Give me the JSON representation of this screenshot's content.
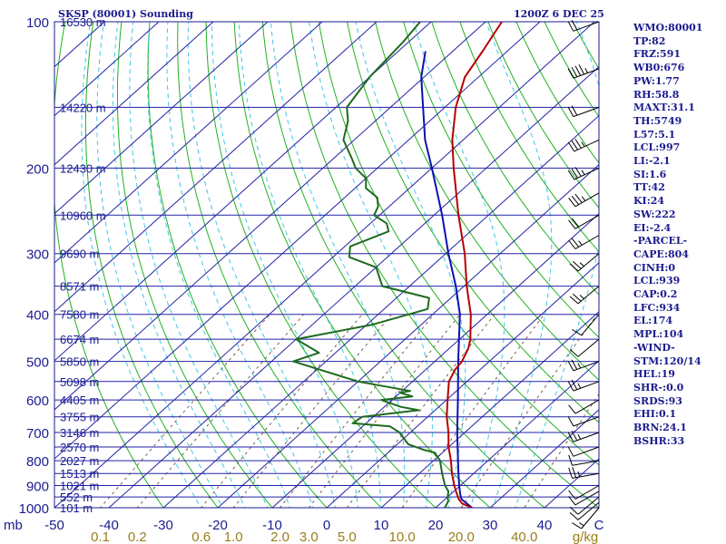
{
  "header": {
    "title": "SKSP (80001) Sounding",
    "datetime": "1200Z  6 DEC 25"
  },
  "colors": {
    "background": "#ffffff",
    "frame": "#1b1b8f",
    "isobar": "#2222a6",
    "isotherm": "#2222a6",
    "dry_adiabat": "#22b022",
    "moist_adiabat": "#41c6e6",
    "mixing_ratio": "#7a6048",
    "temperature": "#b80000",
    "dewpoint": "#1e6b1e",
    "parcel": "#1010b0",
    "sidebar_text": "#1b1b8f",
    "mixing_ratio_text": "#9a7d1a",
    "temp_axis_text": "#1b1b8f"
  },
  "sidebar": [
    "WMO:80001",
    "TP:82",
    "FRZ:591",
    "WB0:676",
    "PW:1.77",
    "RH:58.8",
    "MAXT:31.1",
    "TH:5749",
    "L57:5.1",
    "LCL:997",
    "LI:-2.1",
    "SI:1.6",
    "TT:42",
    "KI:24",
    "SW:222",
    "EI:-2.4",
    "-PARCEL-",
    "CAPE:804",
    "CINH:0",
    "LCL:939",
    "CAP:0.2",
    "LFC:934",
    "EL:174",
    "MPL:104",
    "-WIND-",
    "STM:120/14",
    "HEL:19",
    "SHR-:0.0",
    "SRDS:93",
    "EHI:0.1",
    "BRN:24.1",
    "BSHR:33"
  ],
  "chart_data": {
    "type": "skew-t",
    "title": "SKSP (80001) Sounding",
    "datetime": "1200Z  6 DEC 25",
    "pressure_unit": "mb",
    "temperature_unit": "C",
    "mixing_ratio_unit": "g/kg",
    "pressure_levels": [
      100,
      200,
      300,
      400,
      500,
      600,
      700,
      800,
      900,
      1000
    ],
    "temperature_ticks": [
      -50,
      -40,
      -30,
      -20,
      -10,
      0,
      10,
      20,
      30,
      40,
      "C"
    ],
    "mixing_ratio_labels": [
      "0.1",
      "0.2",
      "0.6",
      "1.0",
      "2.0",
      "3.0",
      "5.0",
      "10.0",
      "20.0",
      "40.0",
      "g/kg"
    ],
    "mixing_ratio_values": [
      0.1,
      0.2,
      0.6,
      1.0,
      2.0,
      3.0,
      5.0,
      10.0,
      20.0,
      40.0
    ],
    "heights": [
      {
        "p": 100,
        "label": "16530 m"
      },
      {
        "p": 150,
        "label": "14220 m"
      },
      {
        "p": 200,
        "label": "12430 m"
      },
      {
        "p": 250,
        "label": "10960 m"
      },
      {
        "p": 300,
        "label": "9690 m"
      },
      {
        "p": 350,
        "label": "8571 m"
      },
      {
        "p": 400,
        "label": "7580 m"
      },
      {
        "p": 450,
        "label": "6674 m"
      },
      {
        "p": 500,
        "label": "5850 m"
      },
      {
        "p": 550,
        "label": "5098 m"
      },
      {
        "p": 600,
        "label": "4405 m"
      },
      {
        "p": 650,
        "label": "3755 m"
      },
      {
        "p": 700,
        "label": "3146 m"
      },
      {
        "p": 750,
        "label": "2570 m"
      },
      {
        "p": 800,
        "label": "2027 m"
      },
      {
        "p": 850,
        "label": "1513 m"
      },
      {
        "p": 900,
        "label": "1021 m"
      },
      {
        "p": 950,
        "label": "552 m"
      },
      {
        "p": 1000,
        "label": "101 m"
      }
    ],
    "temperature_profile": [
      [
        1000,
        26.7
      ],
      [
        980,
        24.0
      ],
      [
        960,
        22.5
      ],
      [
        925,
        20.4
      ],
      [
        900,
        18.9
      ],
      [
        850,
        16.0
      ],
      [
        800,
        13.2
      ],
      [
        750,
        10.0
      ],
      [
        700,
        7.0
      ],
      [
        650,
        3.5
      ],
      [
        600,
        0.2
      ],
      [
        550,
        -3.3
      ],
      [
        520,
        -4.6
      ],
      [
        500,
        -5.0
      ],
      [
        470,
        -6.5
      ],
      [
        450,
        -8.0
      ],
      [
        400,
        -13.0
      ],
      [
        350,
        -19.5
      ],
      [
        300,
        -26.5
      ],
      [
        250,
        -35.5
      ],
      [
        200,
        -46.0
      ],
      [
        175,
        -52.0
      ],
      [
        150,
        -58.0
      ],
      [
        130,
        -62.5
      ],
      [
        115,
        -64.5
      ],
      [
        100,
        -67.0
      ]
    ],
    "dewpoint_profile": [
      [
        1000,
        21.7
      ],
      [
        970,
        21.0
      ],
      [
        950,
        20.0
      ],
      [
        925,
        19.0
      ],
      [
        900,
        17.2
      ],
      [
        850,
        14.2
      ],
      [
        800,
        11.2
      ],
      [
        770,
        8.6
      ],
      [
        760,
        6.0
      ],
      [
        740,
        2.0
      ],
      [
        700,
        -2.0
      ],
      [
        680,
        -5.0
      ],
      [
        670,
        -12.5
      ],
      [
        650,
        -12.0
      ],
      [
        630,
        -3.0
      ],
      [
        620,
        -7.0
      ],
      [
        600,
        -12.0
      ],
      [
        590,
        -7.0
      ],
      [
        580,
        -10.0
      ],
      [
        575,
        -8.5
      ],
      [
        550,
        -20.0
      ],
      [
        500,
        -36.0
      ],
      [
        480,
        -33.0
      ],
      [
        450,
        -40.0
      ],
      [
        420,
        -29.0
      ],
      [
        390,
        -22.0
      ],
      [
        370,
        -24.0
      ],
      [
        350,
        -35.0
      ],
      [
        320,
        -40.0
      ],
      [
        305,
        -47.0
      ],
      [
        290,
        -49.0
      ],
      [
        270,
        -45.0
      ],
      [
        260,
        -47.0
      ],
      [
        250,
        -51.0
      ],
      [
        240,
        -52.0
      ],
      [
        230,
        -54.0
      ],
      [
        220,
        -58.0
      ],
      [
        210,
        -60.0
      ],
      [
        200,
        -64.0
      ],
      [
        190,
        -67.0
      ],
      [
        175,
        -72.0
      ],
      [
        160,
        -75.0
      ],
      [
        150,
        -78.0
      ],
      [
        130,
        -80.0
      ],
      [
        110,
        -81.0
      ],
      [
        100,
        -82.0
      ]
    ],
    "parcel_profile": [
      [
        1000,
        26.7
      ],
      [
        960,
        23.0
      ],
      [
        935,
        21.6
      ],
      [
        900,
        19.8
      ],
      [
        850,
        17.2
      ],
      [
        800,
        14.5
      ],
      [
        700,
        8.6
      ],
      [
        600,
        2.1
      ],
      [
        500,
        -5.7
      ],
      [
        400,
        -15.0
      ],
      [
        350,
        -21.5
      ],
      [
        300,
        -29.5
      ],
      [
        250,
        -38.5
      ],
      [
        200,
        -50.0
      ],
      [
        175,
        -57.0
      ],
      [
        150,
        -64.0
      ],
      [
        130,
        -70.5
      ],
      [
        115,
        -75.0
      ]
    ],
    "wind_barbs": [
      {
        "p": 100,
        "dir": 250,
        "spd": 20
      },
      {
        "p": 125,
        "dir": 250,
        "spd": 35
      },
      {
        "p": 150,
        "dir": 250,
        "spd": 20
      },
      {
        "p": 175,
        "dir": 245,
        "spd": 25
      },
      {
        "p": 200,
        "dir": 245,
        "spd": 25
      },
      {
        "p": 225,
        "dir": 240,
        "spd": 25
      },
      {
        "p": 250,
        "dir": 240,
        "spd": 20
      },
      {
        "p": 275,
        "dir": 240,
        "spd": 15
      },
      {
        "p": 300,
        "dir": 230,
        "spd": 15
      },
      {
        "p": 350,
        "dir": 230,
        "spd": 15
      },
      {
        "p": 400,
        "dir": 220,
        "spd": 10
      },
      {
        "p": 450,
        "dir": 230,
        "spd": 10
      },
      {
        "p": 500,
        "dir": 250,
        "spd": 15
      },
      {
        "p": 550,
        "dir": 250,
        "spd": 15
      },
      {
        "p": 600,
        "dir": 240,
        "spd": 10
      },
      {
        "p": 650,
        "dir": 250,
        "spd": 10
      },
      {
        "p": 700,
        "dir": 250,
        "spd": 15
      },
      {
        "p": 750,
        "dir": 250,
        "spd": 10
      },
      {
        "p": 800,
        "dir": 260,
        "spd": 10
      },
      {
        "p": 850,
        "dir": 260,
        "spd": 15
      },
      {
        "p": 900,
        "dir": 240,
        "spd": 10
      },
      {
        "p": 925,
        "dir": 240,
        "spd": 10
      },
      {
        "p": 950,
        "dir": 230,
        "spd": 10
      },
      {
        "p": 975,
        "dir": 230,
        "spd": 10
      },
      {
        "p": 1000,
        "dir": 220,
        "spd": 5
      }
    ],
    "xlim_at_bottom": [
      -50,
      50
    ],
    "ylim": [
      1000,
      100
    ]
  }
}
